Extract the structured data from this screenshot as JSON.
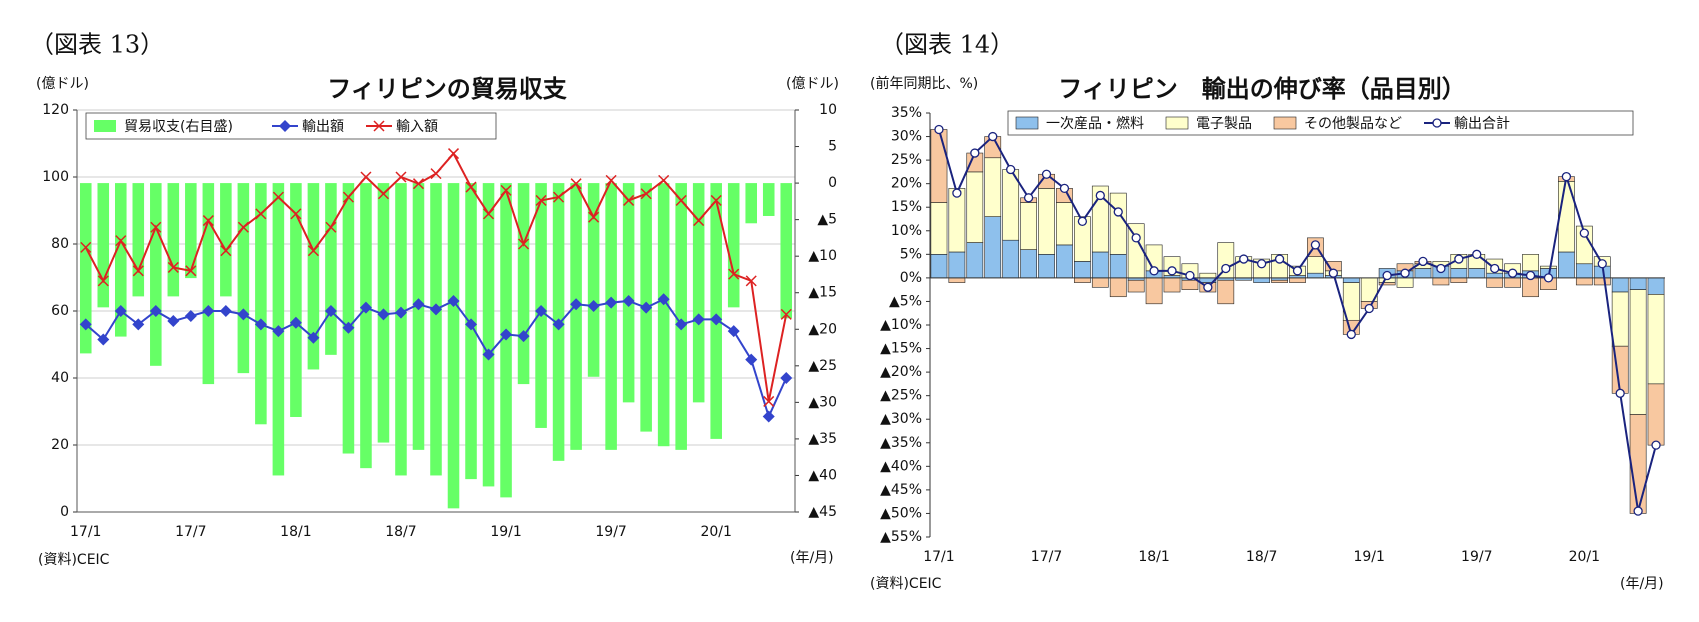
{
  "chart_data": [
    {
      "type": "bar-line",
      "figure_label": "（図表 13）",
      "title": "フィリピンの貿易収支",
      "y_label": "(億ドル)",
      "y2_label": "(億ドル)",
      "source": "(資料)CEIC",
      "x_unit": "(年/月)",
      "categories": [
        "17/1",
        null,
        null,
        null,
        null,
        null,
        "17/7",
        null,
        null,
        null,
        null,
        null,
        "18/1",
        null,
        null,
        null,
        null,
        null,
        "18/7",
        null,
        null,
        null,
        null,
        null,
        "19/1",
        null,
        null,
        null,
        null,
        null,
        "19/7",
        null,
        null,
        null,
        null,
        null,
        "20/1",
        null,
        null,
        null,
        null
      ],
      "series": [
        {
          "name": "貿易収支(右目盛)",
          "color": "#66ff66",
          "kind": "bar",
          "axis": "y2",
          "values": [
            -23.3,
            -17,
            -21,
            -15.5,
            -25,
            -15.5,
            -13,
            -27.5,
            -15.5,
            -26,
            -33,
            -40,
            -32,
            -25.5,
            -23.5,
            -37,
            -39,
            -35.5,
            -40,
            -36.5,
            -40,
            -44.5,
            -40.5,
            -41.5,
            -43,
            -27.5,
            -33.5,
            -38,
            -36.5,
            -26.5,
            -36.5,
            -30,
            -34,
            -36,
            -36.5,
            -30,
            -35,
            -17,
            -5.5,
            -4.5,
            -18.5
          ]
        },
        {
          "name": "輸出額",
          "color": "#3344cc",
          "kind": "line",
          "marker": "diamond",
          "values": [
            56,
            51.5,
            60,
            56,
            60,
            57,
            58.5,
            60,
            60,
            59,
            56,
            54,
            56.5,
            52,
            60,
            55,
            61,
            59,
            59.5,
            62,
            60.5,
            63,
            56,
            47,
            53,
            52.5,
            60,
            56,
            62,
            61.5,
            62.5,
            63,
            61,
            63.5,
            56,
            57.5,
            57.5,
            54,
            45.5,
            28.5,
            40
          ]
        },
        {
          "name": "輸入額",
          "color": "#dd2222",
          "kind": "line",
          "marker": "x",
          "values": [
            79,
            69,
            81,
            72,
            85,
            73,
            72,
            87,
            78,
            85,
            89,
            94,
            89,
            78,
            85,
            94,
            100,
            95,
            100,
            98,
            101,
            107,
            97,
            89,
            96,
            80,
            93,
            94,
            98,
            88,
            99,
            93,
            95,
            99,
            93,
            87,
            93,
            71,
            69,
            33,
            59
          ]
        }
      ],
      "ylim": [
        0,
        120
      ],
      "yticks": [
        0,
        20,
        40,
        60,
        80,
        100,
        120
      ],
      "y2lim": [
        -45,
        10
      ],
      "y2ticks": [
        10,
        5,
        0,
        {
          "value": -5,
          "label": "▲5"
        },
        {
          "value": -10,
          "label": "▲10"
        },
        {
          "value": -15,
          "label": "▲15"
        },
        {
          "value": -20,
          "label": "▲20"
        },
        {
          "value": -25,
          "label": "▲25"
        },
        {
          "value": -30,
          "label": "▲30"
        },
        {
          "value": -35,
          "label": "▲35"
        },
        {
          "value": -40,
          "label": "▲40"
        },
        {
          "value": -45,
          "label": "▲45"
        }
      ],
      "grid": true,
      "legend": "upper left"
    },
    {
      "type": "stacked-bar-line",
      "figure_label": "（図表 14）",
      "title": "フィリピン　輸出の伸び率（品目別）",
      "y_label": "(前年同期比、%)",
      "source": "(資料)CEIC",
      "x_unit": "(年/月)",
      "categories": [
        "17/1",
        null,
        null,
        null,
        null,
        null,
        "17/7",
        null,
        null,
        null,
        null,
        null,
        "18/1",
        null,
        null,
        null,
        null,
        null,
        "18/7",
        null,
        null,
        null,
        null,
        null,
        "19/1",
        null,
        null,
        null,
        null,
        null,
        "19/7",
        null,
        null,
        null,
        null,
        null,
        "20/1",
        null,
        null,
        null,
        null
      ],
      "series": [
        {
          "name": "一次産品・燃料",
          "color": "#8ec0ec",
          "kind": "bar",
          "values": [
            5,
            5.5,
            7.5,
            13,
            8,
            6,
            5,
            7,
            3.5,
            5.5,
            5,
            -0.5,
            1.5,
            0.5,
            -0.5,
            -1,
            -0.5,
            -0.5,
            -1,
            -0.5,
            0.5,
            1,
            0.5,
            -1,
            0,
            2,
            1.5,
            2,
            2.5,
            2,
            2,
            1,
            1,
            1.5,
            2,
            5.5,
            3,
            2.5,
            -3,
            -2.5,
            -3.5
          ]
        },
        {
          "name": "電子製品",
          "color": "#ffffcc",
          "kind": "bar",
          "values": [
            11,
            13.5,
            15,
            12.5,
            15,
            10,
            14,
            9,
            9.5,
            14,
            13,
            11.5,
            5.5,
            4,
            3,
            1,
            7.5,
            4.5,
            4,
            5,
            2,
            3.5,
            1,
            -8,
            -5,
            -1,
            -2,
            1,
            1,
            3,
            3,
            3,
            2,
            3.5,
            0.5,
            15,
            8,
            2,
            -11.5,
            -26.5,
            -19
          ]
        },
        {
          "name": "その他製品など",
          "color": "#f8c8a0",
          "kind": "bar",
          "values": [
            15.5,
            -1,
            4,
            4.5,
            0,
            1,
            3,
            3,
            -1,
            -2,
            -4,
            -2.5,
            -5.5,
            -3,
            -2,
            -2,
            -5,
            0,
            0,
            -0.5,
            -1,
            4,
            2,
            -3,
            -1.5,
            -0.5,
            1.5,
            0.5,
            -1.5,
            -1,
            0,
            -2,
            -2,
            -4,
            -2.5,
            1,
            -1.5,
            -1.5,
            -10,
            -21,
            -13
          ]
        },
        {
          "name": "輸出合計",
          "color": "#1a237e",
          "kind": "line",
          "marker": "circle",
          "values": [
            31.5,
            18,
            26.5,
            30,
            23,
            17,
            22,
            19,
            12,
            17.5,
            14,
            8.5,
            1.5,
            1.5,
            0.5,
            -2,
            2,
            4,
            3,
            4,
            1.5,
            7,
            1,
            -12,
            -6.5,
            0.5,
            1,
            3.5,
            2,
            4,
            5,
            2,
            1,
            0.5,
            0,
            21.5,
            9.5,
            3,
            -24.5,
            -49.5,
            -35.5
          ]
        }
      ],
      "ylim": [
        -55,
        35
      ],
      "yticks": [
        {
          "value": 35,
          "label": "35%"
        },
        {
          "value": 30,
          "label": "30%"
        },
        {
          "value": 25,
          "label": "25%"
        },
        {
          "value": 20,
          "label": "20%"
        },
        {
          "value": 15,
          "label": "15%"
        },
        {
          "value": 10,
          "label": "10%"
        },
        {
          "value": 5,
          "label": "5%"
        },
        {
          "value": 0,
          "label": "0%"
        },
        {
          "value": -5,
          "label": "▲5%"
        },
        {
          "value": -10,
          "label": "▲10%"
        },
        {
          "value": -15,
          "label": "▲15%"
        },
        {
          "value": -20,
          "label": "▲20%"
        },
        {
          "value": -25,
          "label": "▲25%"
        },
        {
          "value": -30,
          "label": "▲30%"
        },
        {
          "value": -35,
          "label": "▲35%"
        },
        {
          "value": -40,
          "label": "▲40%"
        },
        {
          "value": -45,
          "label": "▲45%"
        },
        {
          "value": -50,
          "label": "▲50%"
        },
        {
          "value": -55,
          "label": "▲55%"
        }
      ],
      "grid": false,
      "legend": "top"
    }
  ]
}
